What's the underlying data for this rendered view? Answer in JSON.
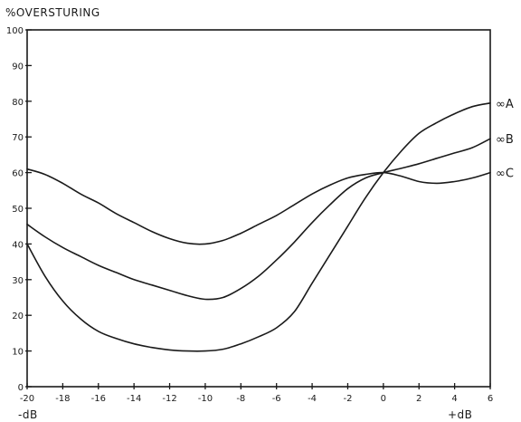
{
  "chart_data": {
    "type": "line",
    "ylabel": "%OVERSTURING",
    "xlabel_left": "-dB",
    "xlabel_right": "+dB",
    "xlim": [
      -20,
      6
    ],
    "ylim": [
      0,
      100
    ],
    "grid": false,
    "x_ticks": [
      "-20",
      "-18",
      "-16",
      "-14",
      "-12",
      "-10",
      "-8",
      "-6",
      "-4",
      "-2",
      "0",
      "2",
      "4",
      "6"
    ],
    "y_ticks": [
      "0",
      "10",
      "20",
      "30",
      "40",
      "50",
      "60",
      "70",
      "80",
      "90",
      "100"
    ],
    "series": [
      {
        "name": "∞A",
        "x": [
          -20,
          -19,
          -18,
          -17,
          -16,
          -15,
          -14,
          -13,
          -12,
          -11,
          -10,
          -9,
          -8,
          -7,
          -6,
          -5,
          -4,
          -3,
          -2,
          -1,
          0,
          1,
          2,
          3,
          4,
          5,
          6
        ],
        "values": [
          40,
          31,
          24,
          19,
          15.5,
          13.5,
          12,
          11,
          10.3,
          10,
          10,
          10.5,
          12,
          14,
          16.5,
          21,
          29,
          37,
          45,
          53,
          60,
          66,
          71,
          74,
          76.5,
          78.5,
          79.5
        ]
      },
      {
        "name": "∞B",
        "x": [
          -20,
          -19,
          -18,
          -17,
          -16,
          -15,
          -14,
          -13,
          -12,
          -11,
          -10,
          -9,
          -8,
          -7,
          -6,
          -5,
          -4,
          -3,
          -2,
          -1,
          0,
          1,
          2,
          3,
          4,
          5,
          6
        ],
        "values": [
          45.5,
          42,
          39,
          36.5,
          34,
          32,
          30,
          28.5,
          27,
          25.5,
          24.5,
          25,
          27.5,
          31,
          35.5,
          40.5,
          46,
          51,
          55.5,
          58.5,
          60,
          61.2,
          62.5,
          64,
          65.5,
          67,
          69.5
        ]
      },
      {
        "name": "∞C",
        "x": [
          -20,
          -19,
          -18,
          -17,
          -16,
          -15,
          -14,
          -13,
          -12,
          -11,
          -10,
          -9,
          -8,
          -7,
          -6,
          -5,
          -4,
          -3,
          -2,
          -1,
          0,
          1,
          2,
          3,
          4,
          5,
          6
        ],
        "values": [
          61,
          59.5,
          57,
          54,
          51.5,
          48.5,
          46,
          43.5,
          41.5,
          40.2,
          40,
          41,
          43,
          45.5,
          48,
          51,
          54,
          56.5,
          58.5,
          59.5,
          60,
          59,
          57.5,
          57,
          57.5,
          58.5,
          60
        ]
      }
    ]
  }
}
